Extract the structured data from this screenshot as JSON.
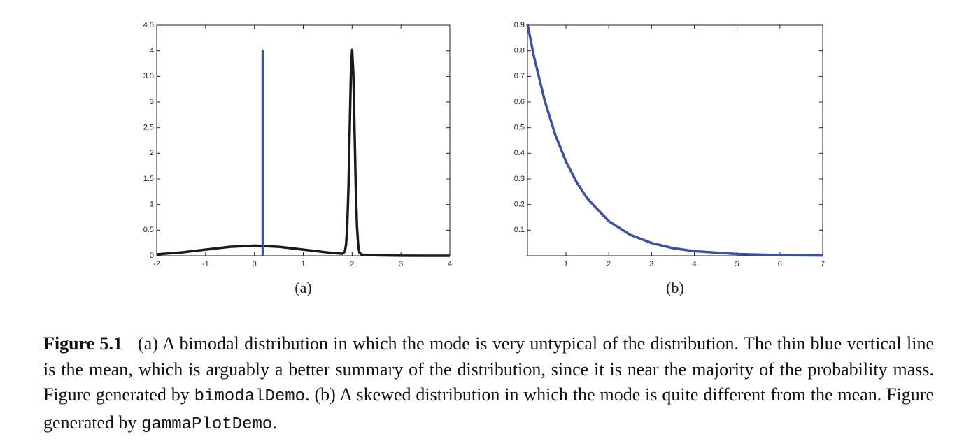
{
  "chart_data": [
    {
      "type": "line",
      "subplot_label": "(a)",
      "xlim": [
        -2,
        4
      ],
      "xticks": [
        -2,
        -1,
        0,
        1,
        2,
        3,
        4
      ],
      "ylim": [
        0,
        4.5
      ],
      "yticks": [
        0,
        0.5,
        1,
        1.5,
        2,
        2.5,
        3,
        3.5,
        4,
        4.5
      ],
      "grid": false,
      "series": [
        {
          "color": "#1a1a1a",
          "x": [
            -2,
            -1.5,
            -1,
            -0.5,
            0,
            0.5,
            1,
            1.5,
            1.8,
            1.85,
            1.875,
            1.9,
            1.925,
            1.95,
            1.975,
            2,
            2.025,
            2.05,
            2.075,
            2.1,
            2.125,
            2.15,
            2.2,
            2.5,
            3,
            3.5,
            4
          ],
          "values": [
            0.027,
            0.065,
            0.121,
            0.176,
            0.199,
            0.176,
            0.121,
            0.065,
            0.04,
            0.08,
            0.21,
            0.57,
            1.33,
            2.45,
            3.55,
            4.02,
            3.55,
            2.44,
            1.32,
            0.56,
            0.2,
            0.06,
            0.02,
            0.009,
            0.002,
            0.0004,
            0
          ]
        },
        {
          "color": "#3a52a4",
          "x": [
            0.17,
            0.17
          ],
          "values": [
            0,
            4.02
          ]
        }
      ]
    },
    {
      "type": "line",
      "subplot_label": "(b)",
      "xlim": [
        0.1,
        7
      ],
      "xticks": [
        1,
        2,
        3,
        4,
        5,
        6,
        7
      ],
      "ylim": [
        0,
        0.9
      ],
      "yticks": [
        0.1,
        0.2,
        0.3,
        0.4,
        0.5,
        0.6,
        0.7,
        0.8,
        0.9
      ],
      "grid": false,
      "series": [
        {
          "color": "#3a52a4",
          "x": [
            0.1,
            0.25,
            0.5,
            0.75,
            1,
            1.25,
            1.5,
            2,
            2.5,
            3,
            3.5,
            4,
            5,
            6,
            7
          ],
          "values": [
            0.905,
            0.779,
            0.607,
            0.472,
            0.368,
            0.287,
            0.223,
            0.135,
            0.082,
            0.05,
            0.03,
            0.018,
            0.0067,
            0.0025,
            0.0009
          ]
        }
      ]
    }
  ],
  "caption": {
    "label": "Figure 5.1",
    "parts": [
      {
        "text": "(a) A bimodal distribution in which the mode is very untypical of the distribution. The thin blue vertical line is the mean, which is arguably a better summary of the distribution, since it is near the majority of the probability mass. Figure generated by "
      },
      {
        "code": "bimodalDemo"
      },
      {
        "text": ". (b) A skewed distribution in which the mode is quite different from the mean. Figure generated by "
      },
      {
        "code": "gammaPlotDemo"
      },
      {
        "text": "."
      }
    ]
  }
}
